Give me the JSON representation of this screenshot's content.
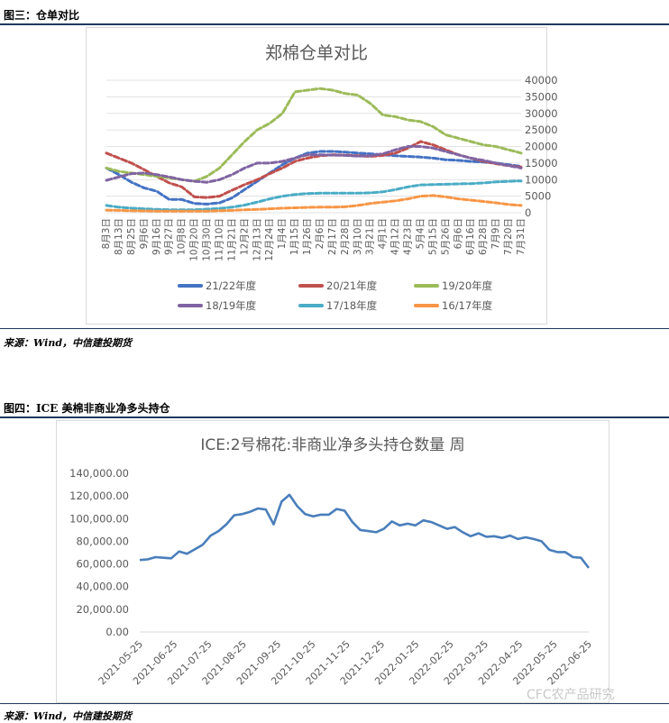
{
  "figure1": {
    "caption": "图三：仓单对比",
    "source": "来源：Wind，中信建投期货"
  },
  "figure2": {
    "caption": "图四：ICE 美棉非商业净多头持仓",
    "source": "来源：Wind，中信建投期货"
  },
  "watermark": "CFC农产品研究",
  "chart_data": [
    {
      "type": "line",
      "title": "郑棉仓单对比",
      "y_axis_side": "right",
      "ylim": [
        0,
        40000
      ],
      "yticks": [
        0,
        5000,
        10000,
        15000,
        20000,
        25000,
        30000,
        35000,
        40000
      ],
      "categories": [
        "8月3日",
        "8月13日",
        "8月25日",
        "9月6日",
        "9月16日",
        "9月27日",
        "10月8日",
        "10月20日",
        "10月30日",
        "11月10日",
        "11月21日",
        "12月2日",
        "12月13日",
        "12月24日",
        "1月4日",
        "1月15日",
        "1月26日",
        "2月6日",
        "2月17日",
        "2月28日",
        "3月10日",
        "3月21日",
        "4月1日",
        "4月12日",
        "4月23日",
        "5月4日",
        "5月15日",
        "5月26日",
        "6月6日",
        "6月16日",
        "6月28日",
        "7月9日",
        "7月20日",
        "7月31日"
      ],
      "legend_position": "bottom",
      "series": [
        {
          "name": "21/22年度",
          "color": "#4472c4",
          "values": [
            13500,
            11500,
            9200,
            7500,
            6500,
            4000,
            4000,
            2800,
            2600,
            3000,
            4500,
            7000,
            9500,
            12000,
            14500,
            16500,
            18000,
            18500,
            18500,
            18300,
            18000,
            17800,
            17500,
            17200,
            17000,
            16800,
            16500,
            16000,
            15800,
            15500,
            15300,
            15000,
            14500,
            14000
          ]
        },
        {
          "name": "20/21年度",
          "color": "#c0504d",
          "values": [
            18000,
            16500,
            15000,
            13000,
            11000,
            9000,
            7800,
            4800,
            4600,
            5000,
            6800,
            8500,
            10000,
            11800,
            13500,
            15500,
            16500,
            17200,
            17500,
            17400,
            17200,
            17000,
            17300,
            18000,
            19500,
            21500,
            20500,
            19000,
            17500,
            16500,
            15500,
            14800,
            14200,
            13800
          ]
        },
        {
          "name": "19/20年度",
          "color": "#9bbb59",
          "values": [
            13500,
            12500,
            12000,
            11500,
            11000,
            10500,
            10000,
            9500,
            11000,
            13500,
            17500,
            21500,
            25000,
            27000,
            30000,
            36500,
            37000,
            37500,
            37000,
            36000,
            35500,
            33000,
            29500,
            29000,
            28000,
            27500,
            26000,
            23500,
            22500,
            21500,
            20500,
            20000,
            19000,
            18000
          ]
        },
        {
          "name": "18/19年度",
          "color": "#8064a2",
          "values": [
            9800,
            10800,
            11800,
            12000,
            11500,
            10800,
            10000,
            9500,
            9200,
            10000,
            11500,
            13500,
            15000,
            15000,
            15500,
            16500,
            17500,
            17500,
            17400,
            17300,
            17100,
            17200,
            17800,
            19000,
            20000,
            20000,
            19500,
            18500,
            17500,
            16500,
            15800,
            15000,
            14200,
            13500
          ]
        },
        {
          "name": "17/18年度",
          "color": "#4bacc6",
          "values": [
            2200,
            1700,
            1400,
            1200,
            1000,
            900,
            900,
            900,
            1100,
            1300,
            1700,
            2300,
            3200,
            4200,
            5000,
            5500,
            5800,
            5900,
            5900,
            5900,
            5900,
            6000,
            6300,
            7000,
            7800,
            8400,
            8500,
            8600,
            8700,
            8800,
            9000,
            9300,
            9500,
            9600
          ]
        },
        {
          "name": "16/17年度",
          "color": "#f79646",
          "values": [
            800,
            700,
            600,
            550,
            500,
            500,
            500,
            500,
            500,
            600,
            700,
            900,
            1000,
            1200,
            1400,
            1500,
            1600,
            1700,
            1700,
            1800,
            2200,
            2800,
            3200,
            3600,
            4200,
            5000,
            5200,
            4800,
            4200,
            3800,
            3400,
            3000,
            2500,
            2200
          ]
        }
      ]
    },
    {
      "type": "line",
      "title": "ICE:2号棉花:非商业净多头持仓数量 周",
      "ylim": [
        0,
        140000
      ],
      "ytick_labels": [
        "0.00",
        "20,000.00",
        "40,000.00",
        "60,000.00",
        "80,000.00",
        "100,000.00",
        "120,000.00",
        "140,000.00"
      ],
      "yticks": [
        0,
        20000,
        40000,
        60000,
        80000,
        100000,
        120000,
        140000
      ],
      "x_tick_labels": [
        "2021-05-25",
        "2021-06-25",
        "2021-07-25",
        "2021-08-25",
        "2021-09-25",
        "2021-10-25",
        "2021-11-25",
        "2021-12-25",
        "2022-01-25",
        "2022-02-25",
        "2022-03-25",
        "2022-04-25",
        "2022-05-25",
        "2022-06-25"
      ],
      "series": [
        {
          "color": "#4a7ebb",
          "values": [
            63500,
            64000,
            66000,
            65500,
            65000,
            71000,
            69000,
            73000,
            77000,
            85000,
            89000,
            95000,
            103000,
            104000,
            106000,
            109000,
            108000,
            95000,
            115000,
            121000,
            111000,
            104000,
            102000,
            103500,
            103500,
            108500,
            107000,
            97000,
            90000,
            89000,
            88000,
            91000,
            97500,
            94000,
            95500,
            94000,
            98500,
            97000,
            94000,
            91000,
            92500,
            88000,
            84500,
            87000,
            84000,
            84500,
            83000,
            85000,
            82000,
            83500,
            82000,
            80000,
            72500,
            70500,
            70500,
            66000,
            65500,
            56500
          ]
        }
      ]
    }
  ]
}
